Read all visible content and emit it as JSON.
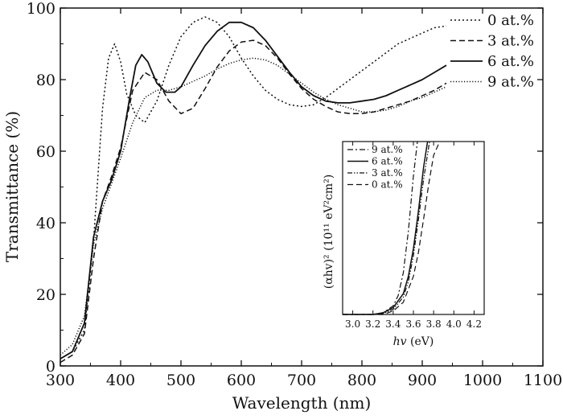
{
  "chart_data": [
    {
      "type": "line",
      "xlabel": "Wavelength (nm)",
      "ylabel": "Transmittance (%)",
      "xlim": [
        300,
        1100
      ],
      "ylim": [
        0,
        100
      ],
      "xticks": [
        300,
        400,
        500,
        600,
        700,
        800,
        900,
        1000,
        1100
      ],
      "yticks": [
        0,
        20,
        40,
        60,
        80,
        100
      ],
      "legend_position": "top-right",
      "series": [
        {
          "name": "0 at.%",
          "style": "dotted",
          "x": [
            300,
            320,
            340,
            355,
            370,
            380,
            390,
            400,
            410,
            425,
            440,
            460,
            480,
            500,
            520,
            540,
            560,
            580,
            600,
            620,
            640,
            660,
            680,
            700,
            720,
            740,
            760,
            780,
            800,
            820,
            840,
            860,
            880,
            900,
            920,
            940
          ],
          "y": [
            2,
            4,
            10,
            35,
            72,
            86,
            90,
            85,
            76,
            70,
            68,
            74,
            84,
            92,
            96,
            97.5,
            96,
            92,
            86,
            81,
            77,
            74.5,
            73,
            72.5,
            73,
            75,
            77.5,
            80,
            82.5,
            85,
            87.5,
            90,
            91.5,
            93,
            94.5,
            95
          ]
        },
        {
          "name": "3 at.%",
          "style": "dashed",
          "x": [
            300,
            320,
            340,
            355,
            370,
            385,
            400,
            420,
            440,
            460,
            480,
            500,
            520,
            540,
            560,
            580,
            600,
            620,
            640,
            660,
            680,
            700,
            720,
            740,
            760,
            780,
            800,
            820,
            840,
            860,
            880,
            900,
            920,
            940
          ],
          "y": [
            1,
            3,
            9,
            30,
            46,
            53,
            61,
            77,
            82,
            80,
            74,
            70.5,
            72,
            77.5,
            83.5,
            88,
            90.5,
            91,
            89.5,
            86,
            81.5,
            77.5,
            74.5,
            72.5,
            71,
            70.5,
            70.5,
            71,
            72,
            73,
            74,
            75.5,
            77,
            79
          ]
        },
        {
          "name": "6 at.%",
          "style": "solid",
          "x": [
            300,
            320,
            340,
            355,
            370,
            385,
            400,
            415,
            425,
            435,
            445,
            460,
            475,
            490,
            500,
            520,
            540,
            560,
            580,
            600,
            620,
            640,
            660,
            680,
            700,
            720,
            740,
            760,
            780,
            800,
            820,
            840,
            860,
            880,
            900,
            920,
            940
          ],
          "y": [
            2,
            4,
            12,
            36,
            46,
            52,
            60,
            75,
            84,
            87,
            85,
            79,
            76.5,
            76.5,
            78,
            84,
            89.5,
            93.5,
            96,
            96,
            94.5,
            91,
            86.5,
            82,
            78,
            75.5,
            74,
            73.5,
            73.5,
            74,
            74.5,
            75.5,
            77,
            78.5,
            80,
            82,
            84
          ]
        },
        {
          "name": "9 at.%",
          "style": "fine-dotted",
          "x": [
            300,
            320,
            340,
            355,
            370,
            385,
            400,
            420,
            440,
            460,
            480,
            500,
            520,
            540,
            560,
            580,
            600,
            620,
            640,
            660,
            680,
            700,
            720,
            740,
            760,
            780,
            800,
            820,
            840,
            860,
            880,
            900,
            920,
            940
          ],
          "y": [
            3,
            6,
            14,
            34,
            44,
            51,
            58,
            68,
            75,
            77,
            77,
            78,
            79.5,
            81,
            83,
            84.5,
            85.5,
            86,
            85.5,
            84,
            81.5,
            79,
            76.5,
            74.5,
            73,
            72,
            71,
            71,
            71.5,
            72.5,
            74,
            75,
            76.5,
            78
          ]
        }
      ]
    },
    {
      "type": "line",
      "role": "inset",
      "xlabel_italic": "hv",
      "xlabel_rest": " (eV)",
      "ylabel": "(αhv)² (10¹¹ eV²cm²)",
      "xlim": [
        2.9,
        4.3
      ],
      "ylim": [
        0,
        1
      ],
      "xticks": [
        3.0,
        3.2,
        3.4,
        3.6,
        3.8,
        4.0,
        4.2
      ],
      "xtick_labels": [
        "3.0",
        "3.2",
        "3.4",
        "3.6",
        "3.8",
        "4.0",
        "4.2"
      ],
      "legend_position": "top-left",
      "series": [
        {
          "name": "9 at.%",
          "style": "dash-dot",
          "x": [
            2.9,
            3.2,
            3.3,
            3.4,
            3.45,
            3.5,
            3.55,
            3.6,
            3.64
          ],
          "y": [
            0,
            0,
            0.01,
            0.05,
            0.11,
            0.24,
            0.48,
            0.8,
            1.0
          ]
        },
        {
          "name": "6 at.%",
          "style": "solid",
          "x": [
            2.9,
            3.2,
            3.3,
            3.4,
            3.5,
            3.55,
            3.6,
            3.65,
            3.7,
            3.74
          ],
          "y": [
            0,
            0,
            0.01,
            0.04,
            0.12,
            0.22,
            0.38,
            0.6,
            0.85,
            1.0
          ]
        },
        {
          "name": "3 at.%",
          "style": "dash-dot-dot",
          "x": [
            2.9,
            3.2,
            3.3,
            3.4,
            3.5,
            3.55,
            3.6,
            3.65,
            3.7,
            3.76
          ],
          "y": [
            0,
            0,
            0.005,
            0.03,
            0.1,
            0.19,
            0.34,
            0.55,
            0.78,
            1.0
          ]
        },
        {
          "name": "0 at.%",
          "style": "dashed",
          "x": [
            2.9,
            3.3,
            3.4,
            3.5,
            3.6,
            3.65,
            3.7,
            3.75,
            3.8,
            3.86
          ],
          "y": [
            0,
            0,
            0.02,
            0.07,
            0.22,
            0.36,
            0.55,
            0.75,
            0.92,
            1.0
          ]
        }
      ]
    }
  ],
  "styles": {
    "solid": "",
    "dashed": "7,4",
    "dotted": "2,3",
    "fine-dotted": "1.2,2.2",
    "dash-dot": "7,3,2,3",
    "dash-dot-dot": "6,2,1.5,2,1.5,2"
  }
}
